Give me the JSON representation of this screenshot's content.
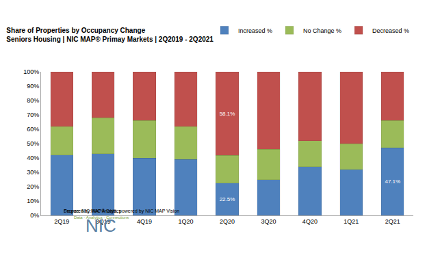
{
  "chart_data": {
    "type": "bar",
    "stacked": true,
    "title": "Share of Properties by Occupancy Change",
    "subtitle": "Seniors Housing | NIC MAP® Primay Markets | 2Q2019 - 2Q2021",
    "categories": [
      "2Q19",
      "3Q19",
      "4Q19",
      "1Q20",
      "2Q20",
      "3Q20",
      "4Q20",
      "1Q21",
      "2Q21"
    ],
    "series": [
      {
        "name": "Increased %",
        "color": "#4f81bd",
        "values": [
          42,
          43,
          40,
          39,
          22.5,
          25,
          34,
          32,
          47.1
        ],
        "value_labels": [
          null,
          null,
          null,
          null,
          "22.5%",
          null,
          null,
          null,
          "47.1%"
        ]
      },
      {
        "name": "No Change %",
        "color": "#9bbb59",
        "values": [
          20,
          25,
          26,
          23,
          19.4,
          21,
          18,
          18,
          18.9
        ]
      },
      {
        "name": "Decreased %",
        "color": "#c0504d",
        "values": [
          38,
          32,
          34,
          38,
          58.1,
          54,
          48,
          50,
          34
        ],
        "value_labels": [
          null,
          null,
          null,
          null,
          "58.1%",
          null,
          null,
          null,
          null
        ]
      }
    ],
    "ylim": [
      0,
      100
    ],
    "yticks": [
      {
        "value": 0,
        "label": "0%"
      },
      {
        "value": 10,
        "label": "10%"
      },
      {
        "value": 20,
        "label": "20%"
      },
      {
        "value": 30,
        "label": "30%"
      },
      {
        "value": 40,
        "label": "40%"
      },
      {
        "value": 50,
        "label": "50%"
      },
      {
        "value": 60,
        "label": "60%"
      },
      {
        "value": 70,
        "label": "70%"
      },
      {
        "value": 80,
        "label": "80%"
      },
      {
        "value": 90,
        "label": "90%"
      },
      {
        "value": 100,
        "label": "100%"
      }
    ],
    "grid": false,
    "legend": "top right",
    "annotations": [
      "NIC",
      "Data · Analytics · Connections",
      "Source: NIC MAP® Data, powered by NIC MAP Vision",
      "Prepared by: NIC Analytics"
    ]
  }
}
